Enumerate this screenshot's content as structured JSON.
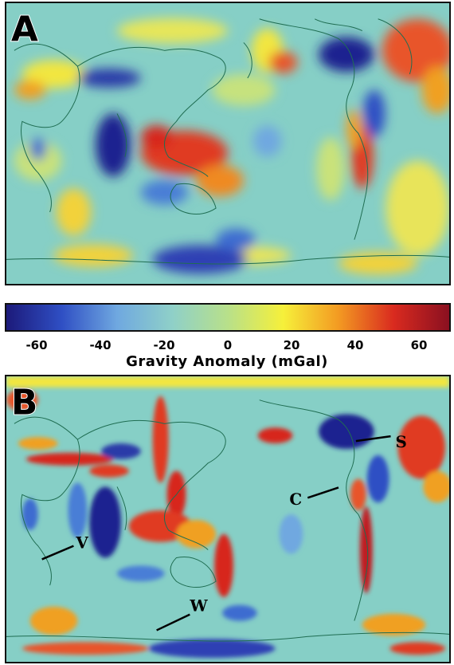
{
  "panels": [
    {
      "letter": "A",
      "model": "smooth"
    },
    {
      "letter": "B",
      "model": "detailed"
    }
  ],
  "colorbar": {
    "min": -70,
    "max": 70,
    "ticks": [
      "-60",
      "-40",
      "-20",
      "0",
      "20",
      "40",
      "60"
    ],
    "label": "Gravity Anomaly (mGal)",
    "colors": [
      "#1c1a7a",
      "#2f4fc4",
      "#6fa8e0",
      "#8fd0c8",
      "#b8e08a",
      "#f6f03a",
      "#f39a22",
      "#d92a1f",
      "#8a1020"
    ]
  },
  "profiles": [
    {
      "label": "S"
    },
    {
      "label": "C"
    },
    {
      "label": "V"
    },
    {
      "label": "W"
    }
  ],
  "coastline_color": "#1f6d52"
}
